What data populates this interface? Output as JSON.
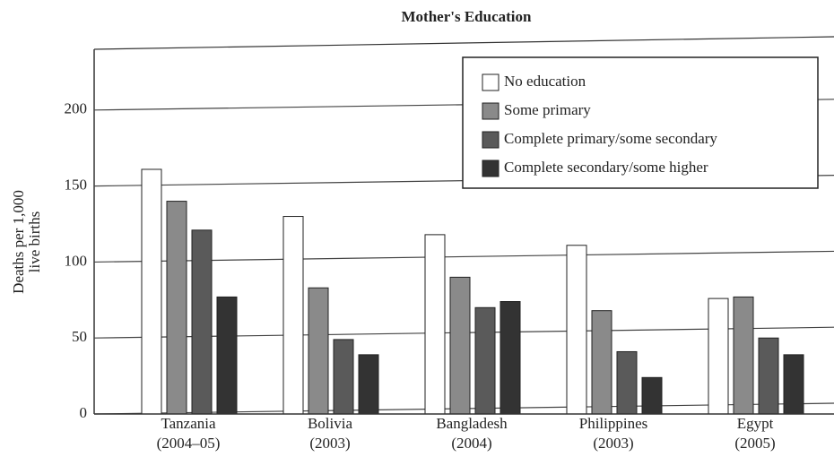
{
  "chart_data": {
    "type": "bar",
    "title": "Mother's Education",
    "y_label": [
      "Deaths per 1,000",
      "live births"
    ],
    "categories": [
      [
        "Tanzania",
        "(2004–05)"
      ],
      [
        "Bolivia",
        "(2003)"
      ],
      [
        "Bangladesh",
        "(2004)"
      ],
      [
        "Philippines",
        "(2003)"
      ],
      [
        "Egypt",
        "(2005)"
      ]
    ],
    "series": [
      {
        "name": "No education",
        "color": "#ffffff",
        "values": [
          161,
          130,
          118,
          111,
          76
        ]
      },
      {
        "name": "Some primary",
        "color": "#8a8a8a",
        "values": [
          140,
          83,
          90,
          68,
          77
        ]
      },
      {
        "name": "Complete primary/some secondary",
        "color": "#5a5a5a",
        "values": [
          121,
          49,
          70,
          41,
          50
        ]
      },
      {
        "name": "Complete secondary/some higher",
        "color": "#333333",
        "values": [
          77,
          39,
          74,
          24,
          39
        ]
      }
    ],
    "ylim": [
      0,
      240
    ],
    "yticks": [
      0,
      50,
      100,
      150,
      200
    ],
    "grid": true,
    "legend": "top-right"
  }
}
